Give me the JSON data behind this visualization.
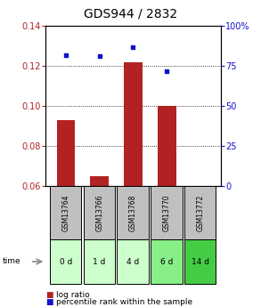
{
  "title": "GDS944 / 2832",
  "samples": [
    "GSM13764",
    "GSM13766",
    "GSM13768",
    "GSM13770",
    "GSM13772"
  ],
  "time_labels": [
    "0 d",
    "1 d",
    "4 d",
    "6 d",
    "14 d"
  ],
  "log_ratio": [
    0.093,
    0.065,
    0.122,
    0.1,
    0.06
  ],
  "percentile_rank": [
    82,
    81,
    87,
    72,
    -1
  ],
  "ylim_left": [
    0.06,
    0.14
  ],
  "ylim_right": [
    0,
    100
  ],
  "yticks_left": [
    0.06,
    0.08,
    0.1,
    0.12,
    0.14
  ],
  "yticks_right": [
    0,
    25,
    50,
    75,
    100
  ],
  "bar_color": "#b22222",
  "dot_color": "#1111cc",
  "bg_color": "#ffffff",
  "sample_bg": "#c0c0c0",
  "time_bg_colors": [
    "#ccffcc",
    "#ccffcc",
    "#ccffcc",
    "#88ee88",
    "#44cc44"
  ],
  "title_fontsize": 10,
  "tick_fontsize": 7,
  "legend_fontsize": 6.5,
  "bar_width": 0.55
}
